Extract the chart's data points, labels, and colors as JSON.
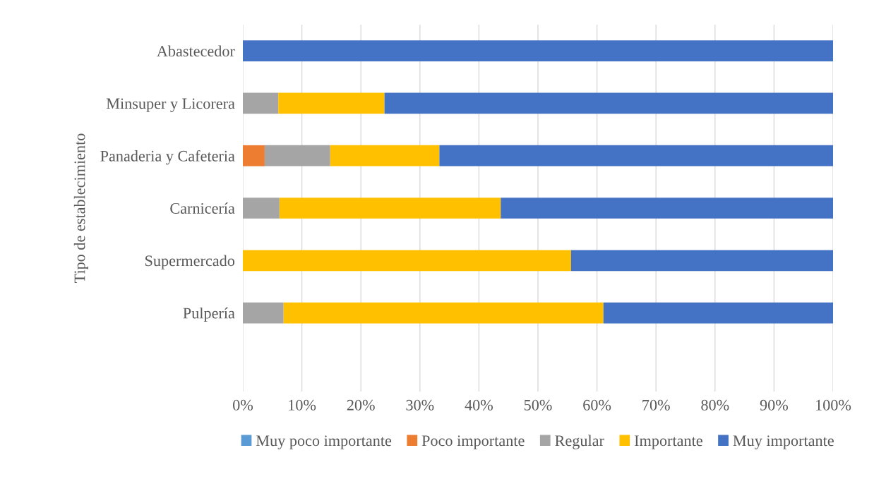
{
  "chart_data": {
    "type": "bar",
    "orientation": "horizontal",
    "stacked": true,
    "ylabel": "Tipo de establecimiento",
    "categories": [
      "Abastecedor",
      "Minsuper y Licorera",
      "Panaderia y Cafeteria",
      "Carnicería",
      "Supermercado",
      "Pulpería",
      null
    ],
    "series": [
      {
        "name": "Muy poco importante",
        "color": "#5b9bd5",
        "values": [
          0,
          0,
          0,
          0,
          0,
          0,
          null
        ]
      },
      {
        "name": "Poco importante",
        "color": "#ed7d31",
        "values": [
          0,
          0,
          3.7,
          0,
          0,
          0,
          null
        ]
      },
      {
        "name": "Regular",
        "color": "#a5a5a5",
        "values": [
          0,
          6,
          11.1,
          6.2,
          0,
          6.9,
          null
        ]
      },
      {
        "name": "Importante",
        "color": "#ffc000",
        "values": [
          0,
          18,
          18.5,
          37.5,
          55.6,
          54.2,
          null
        ]
      },
      {
        "name": "Muy importante",
        "color": "#4472c4",
        "values": [
          100,
          76,
          66.7,
          56.3,
          44.4,
          38.9,
          null
        ]
      }
    ],
    "xlim": [
      0,
      100
    ],
    "xticks": [
      {
        "value": 0,
        "label": "0%"
      },
      {
        "value": 10,
        "label": "10%"
      },
      {
        "value": 20,
        "label": "20%"
      },
      {
        "value": 30,
        "label": "30%"
      },
      {
        "value": 40,
        "label": "40%"
      },
      {
        "value": 50,
        "label": "50%"
      },
      {
        "value": 60,
        "label": "60%"
      },
      {
        "value": 70,
        "label": "70%"
      },
      {
        "value": 80,
        "label": "80%"
      },
      {
        "value": 90,
        "label": "90%"
      },
      {
        "value": 100,
        "label": "100%"
      }
    ],
    "grid": "x",
    "legend": "bottom"
  }
}
